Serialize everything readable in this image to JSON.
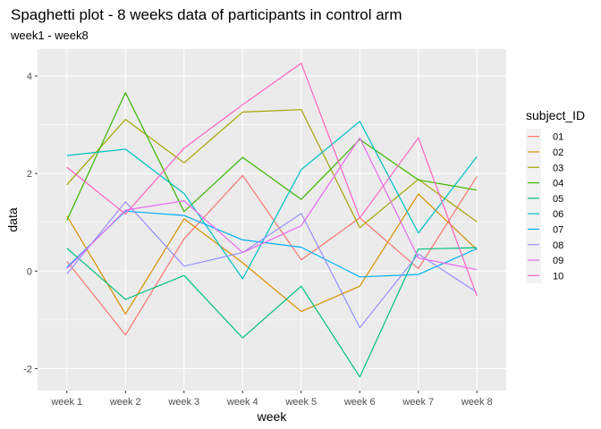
{
  "chart_data": {
    "type": "line",
    "title": "Spaghetti plot - 8 weeks data of participants in control arm",
    "subtitle": "week1 - week8",
    "xlabel": "week",
    "ylabel": "data",
    "categories": [
      "week 1",
      "week 2",
      "week 3",
      "week 4",
      "week 5",
      "week 6",
      "week 7",
      "week 8"
    ],
    "yticks": [
      -2,
      0,
      2,
      4
    ],
    "ylim": [
      -2.45,
      4.55
    ],
    "grid": true,
    "legend": {
      "title": "subject_ID",
      "placement": "right"
    },
    "series": [
      {
        "name": "01",
        "color": "#F8766D",
        "values": [
          0.2,
          -1.31,
          0.66,
          1.96,
          0.23,
          1.09,
          0.05,
          1.94
        ]
      },
      {
        "name": "02",
        "color": "#D89000",
        "values": [
          1.13,
          -0.88,
          1.07,
          0.17,
          -0.83,
          -0.31,
          1.58,
          0.44
        ]
      },
      {
        "name": "03",
        "color": "#A3A500",
        "values": [
          1.77,
          3.11,
          2.22,
          3.26,
          3.31,
          0.89,
          1.88,
          1.01
        ]
      },
      {
        "name": "04",
        "color": "#39B600",
        "values": [
          1.04,
          3.66,
          1.22,
          2.33,
          1.47,
          2.7,
          1.87,
          1.66
        ]
      },
      {
        "name": "05",
        "color": "#00BF7D",
        "values": [
          0.47,
          -0.58,
          -0.09,
          -1.37,
          -0.31,
          -2.17,
          0.45,
          0.48
        ]
      },
      {
        "name": "06",
        "color": "#00BFC4",
        "values": [
          2.37,
          2.5,
          1.59,
          -0.16,
          2.08,
          3.07,
          0.78,
          2.35
        ]
      },
      {
        "name": "07",
        "color": "#00B0F6",
        "values": [
          0.08,
          1.23,
          1.14,
          0.64,
          0.49,
          -0.12,
          -0.07,
          0.46
        ]
      },
      {
        "name": "08",
        "color": "#9590FF",
        "values": [
          -0.06,
          1.42,
          0.1,
          0.38,
          1.18,
          -1.16,
          0.35,
          -0.44
        ]
      },
      {
        "name": "09",
        "color": "#E76BF3",
        "values": [
          0.05,
          1.25,
          1.44,
          0.38,
          0.93,
          2.73,
          0.27,
          0.03
        ]
      },
      {
        "name": "10",
        "color": "#FF62BC",
        "values": [
          2.13,
          1.17,
          2.52,
          3.41,
          4.26,
          1.09,
          2.73,
          -0.51
        ]
      }
    ]
  }
}
